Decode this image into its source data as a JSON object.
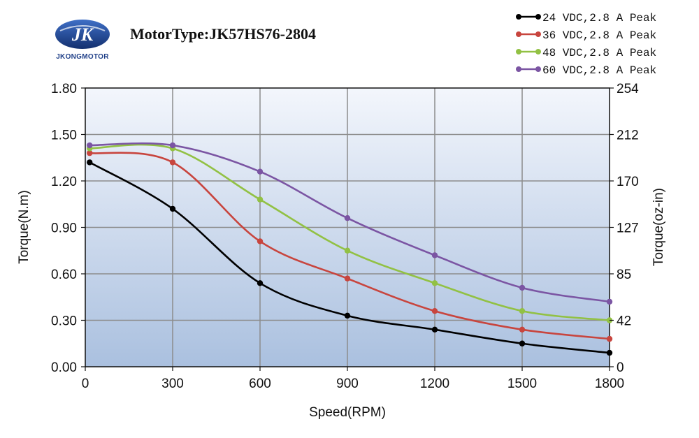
{
  "header": {
    "brand": "JKONGMOTOR",
    "logo_letter": "JK",
    "motor_type": "MotorType:JK57HS76-2804"
  },
  "colors": {
    "plot_bg_top": "#f3f6fc",
    "plot_bg_bottom": "#aac0df",
    "grid": "#8c8c8c",
    "logo_blue": "#1f3f88"
  },
  "chart_data": {
    "type": "line",
    "xlabel": "Speed(RPM)",
    "ylabel": "Torque(N.m)",
    "y2label": "Torque(oz-in)",
    "xlim": [
      0,
      1800
    ],
    "ylim": [
      0,
      1.8
    ],
    "x_ticks": [
      0,
      300,
      600,
      900,
      1200,
      1500,
      1800
    ],
    "y_ticks": [
      "0.00",
      "0.30",
      "0.60",
      "0.90",
      "1.20",
      "1.50",
      "1.80"
    ],
    "y2_ticks": [
      "0",
      "42",
      "85",
      "127",
      "170",
      "212",
      "254"
    ],
    "grid": true,
    "legend_position": "top-right",
    "series": [
      {
        "name": "24 VDC,2.8 A Peak",
        "color": "#000000",
        "x": [
          15,
          300,
          600,
          900,
          1200,
          1500,
          1800
        ],
        "y": [
          1.32,
          1.02,
          0.54,
          0.33,
          0.24,
          0.15,
          0.09
        ]
      },
      {
        "name": "36 VDC,2.8 A Peak",
        "color": "#c8453e",
        "x": [
          15,
          300,
          600,
          900,
          1200,
          1500,
          1800
        ],
        "y": [
          1.38,
          1.32,
          0.81,
          0.57,
          0.36,
          0.24,
          0.18
        ]
      },
      {
        "name": "48 VDC,2.8 A Peak",
        "color": "#92c144",
        "x": [
          15,
          300,
          600,
          900,
          1200,
          1500,
          1800
        ],
        "y": [
          1.41,
          1.41,
          1.08,
          0.75,
          0.54,
          0.36,
          0.3
        ]
      },
      {
        "name": "60 VDC,2.8 A Peak",
        "color": "#7b55a3",
        "x": [
          15,
          300,
          600,
          900,
          1200,
          1500,
          1800
        ],
        "y": [
          1.43,
          1.43,
          1.26,
          0.96,
          0.72,
          0.51,
          0.42
        ]
      }
    ]
  }
}
